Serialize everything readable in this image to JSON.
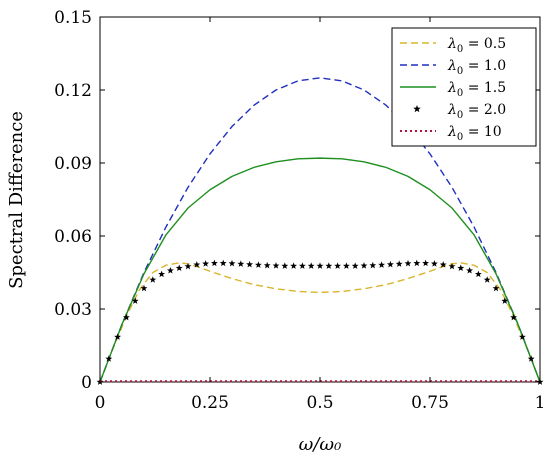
{
  "chart_data": {
    "type": "line",
    "title": "",
    "xlabel": "ω/ω₀",
    "ylabel": "Spectral Difference",
    "xlim": [
      0,
      1
    ],
    "ylim": [
      0,
      0.15
    ],
    "xticks": [
      0,
      0.25,
      0.5,
      0.75,
      1
    ],
    "xtick_labels": [
      "0",
      "0.25",
      "0.5",
      "0.75",
      "1"
    ],
    "yticks": [
      0,
      0.03,
      0.06,
      0.09,
      0.12,
      0.15
    ],
    "ytick_labels": [
      "0",
      "0.03",
      "0.06",
      "0.09",
      "0.12",
      "0.15"
    ],
    "grid": false,
    "legend_position": "top-right",
    "series": [
      {
        "name": "λ₀ = 0.5",
        "label_main": "λ",
        "label_sub": "0",
        "label_rest": " = 0.5",
        "style": "dashed",
        "color": "#d9b52b",
        "x": [
          0,
          0.03,
          0.06,
          0.09,
          0.12,
          0.15,
          0.18,
          0.2,
          0.22,
          0.25,
          0.3,
          0.35,
          0.4,
          0.45,
          0.5,
          0.55,
          0.6,
          0.65,
          0.7,
          0.75,
          0.78,
          0.8,
          0.82,
          0.85,
          0.88,
          0.91,
          0.94,
          0.97,
          1
        ],
        "y": [
          0,
          0.014,
          0.027,
          0.038,
          0.045,
          0.048,
          0.049,
          0.0485,
          0.0475,
          0.0455,
          0.0425,
          0.04,
          0.0383,
          0.0372,
          0.0368,
          0.0372,
          0.0383,
          0.04,
          0.0425,
          0.0455,
          0.0475,
          0.0485,
          0.049,
          0.048,
          0.045,
          0.038,
          0.027,
          0.014,
          0
        ]
      },
      {
        "name": "λ₀ = 1.0",
        "label_main": "λ",
        "label_sub": "0",
        "label_rest": " = 1.0",
        "style": "dashed",
        "color": "#1f2fbf",
        "x": [
          0,
          0.05,
          0.1,
          0.15,
          0.2,
          0.25,
          0.3,
          0.35,
          0.4,
          0.45,
          0.5,
          0.55,
          0.6,
          0.65,
          0.7,
          0.75,
          0.8,
          0.85,
          0.9,
          0.95,
          1
        ],
        "y": [
          0,
          0.02375,
          0.045,
          0.06375,
          0.08,
          0.09375,
          0.105,
          0.11375,
          0.12,
          0.12375,
          0.125,
          0.12375,
          0.12,
          0.11375,
          0.105,
          0.09375,
          0.08,
          0.06375,
          0.045,
          0.02375,
          0
        ]
      },
      {
        "name": "λ₀ = 1.5",
        "label_main": "λ",
        "label_sub": "0",
        "label_rest": " = 1.5",
        "style": "solid",
        "color": "#1e8f1e",
        "x": [
          0,
          0.05,
          0.1,
          0.15,
          0.2,
          0.25,
          0.3,
          0.35,
          0.4,
          0.45,
          0.5,
          0.55,
          0.6,
          0.65,
          0.7,
          0.75,
          0.8,
          0.85,
          0.9,
          0.95,
          1
        ],
        "y": [
          0,
          0.0237,
          0.0445,
          0.0605,
          0.0715,
          0.079,
          0.0845,
          0.0882,
          0.0905,
          0.0917,
          0.092,
          0.0917,
          0.0905,
          0.0882,
          0.0845,
          0.079,
          0.0715,
          0.0605,
          0.0445,
          0.0237,
          0
        ]
      },
      {
        "name": "λ₀ = 2.0",
        "label_main": "λ",
        "label_sub": "0",
        "label_rest": " = 2.0",
        "style": "stars",
        "color": "#000000",
        "x": [
          0,
          0.02,
          0.04,
          0.06,
          0.08,
          0.1,
          0.12,
          0.14,
          0.16,
          0.18,
          0.2,
          0.22,
          0.24,
          0.26,
          0.28,
          0.3,
          0.32,
          0.34,
          0.36,
          0.38,
          0.4,
          0.42,
          0.44,
          0.46,
          0.48,
          0.5,
          0.52,
          0.54,
          0.56,
          0.58,
          0.6,
          0.62,
          0.64,
          0.66,
          0.68,
          0.7,
          0.72,
          0.74,
          0.76,
          0.78,
          0.8,
          0.82,
          0.84,
          0.86,
          0.88,
          0.9,
          0.92,
          0.94,
          0.96,
          0.98,
          1
        ],
        "y": [
          0,
          0.0095,
          0.0185,
          0.0265,
          0.0333,
          0.0385,
          0.042,
          0.0443,
          0.0458,
          0.0468,
          0.0475,
          0.0482,
          0.0486,
          0.0488,
          0.0488,
          0.0487,
          0.0485,
          0.0483,
          0.0481,
          0.0479,
          0.0478,
          0.0477,
          0.0477,
          0.0477,
          0.0477,
          0.0477,
          0.0477,
          0.0477,
          0.0477,
          0.0477,
          0.0478,
          0.0479,
          0.0481,
          0.0483,
          0.0485,
          0.0487,
          0.0488,
          0.0488,
          0.0486,
          0.0482,
          0.0475,
          0.0468,
          0.0458,
          0.0443,
          0.042,
          0.0385,
          0.0333,
          0.0265,
          0.0185,
          0.0095,
          0
        ]
      },
      {
        "name": "λ₀ = 10",
        "label_main": "λ",
        "label_sub": "0",
        "label_rest": " = 10",
        "style": "dotted",
        "color": "#b0123c",
        "x": [
          0,
          0.25,
          0.5,
          0.75,
          1
        ],
        "y": [
          0.0003,
          0.0003,
          0.0003,
          0.0003,
          0.0003
        ]
      }
    ]
  }
}
